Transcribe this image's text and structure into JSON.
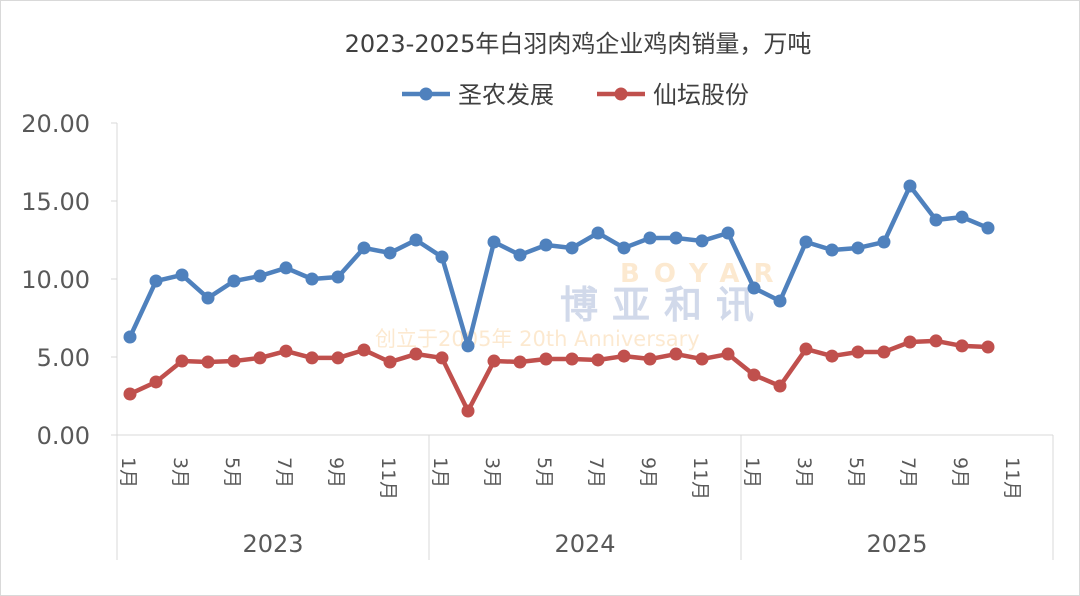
{
  "chart_data": {
    "type": "line",
    "title": "2023-2025年白羽肉鸡企业鸡肉销量，万吨",
    "xlabel": "",
    "ylabel": "",
    "ylim": [
      0,
      20
    ],
    "yticks": [
      "0.00",
      "5.00",
      "10.00",
      "15.00",
      "20.00"
    ],
    "grid": false,
    "legend": "top",
    "years": [
      "2023",
      "2024",
      "2025"
    ],
    "month_labels": [
      "1月",
      "",
      "3月",
      "",
      "5月",
      "",
      "7月",
      "",
      "9月",
      "",
      "11月",
      ""
    ],
    "series": [
      {
        "name": "圣农发展",
        "color": "#4f81bd",
        "values": [
          6.28,
          9.87,
          10.26,
          8.78,
          9.87,
          10.19,
          10.71,
          10.0,
          10.13,
          11.99,
          11.67,
          12.5,
          11.41,
          5.71,
          12.37,
          11.54,
          12.18,
          11.99,
          12.95,
          11.99,
          12.63,
          12.63,
          12.44,
          12.95,
          9.42,
          8.59,
          12.37,
          11.86,
          11.99,
          12.37,
          15.96,
          13.78,
          13.97,
          13.27
        ]
      },
      {
        "name": "仙坛股份",
        "color": "#c0504d",
        "values": [
          2.63,
          3.4,
          4.74,
          4.68,
          4.74,
          4.94,
          5.38,
          4.94,
          4.94,
          5.45,
          4.68,
          5.19,
          4.94,
          1.54,
          4.74,
          4.68,
          4.87,
          4.87,
          4.81,
          5.06,
          4.87,
          5.19,
          4.87,
          5.19,
          3.85,
          3.14,
          5.51,
          5.06,
          5.32,
          5.32,
          5.96,
          6.03,
          5.71,
          5.64
        ]
      }
    ]
  },
  "watermark": {
    "brand_en": "BOYAR",
    "brand_cn": "博亚和讯",
    "tagline": "创立于2005年 20th Anniversary"
  }
}
